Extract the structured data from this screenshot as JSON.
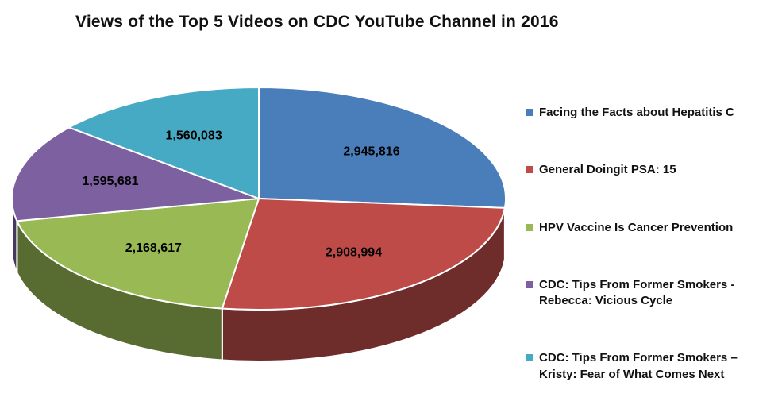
{
  "page": {
    "background": "#ffffff"
  },
  "chart_data": {
    "type": "pie",
    "style": "3d-pie",
    "title": "Views of the Top 5 Videos on CDC YouTube Channel in 2016",
    "legend_position": "right",
    "data_labels": "values-inside-slices",
    "start_angle_deg": 0,
    "direction": "clockwise",
    "slices": [
      {
        "label": "Facing the Facts about Hepatitis C",
        "value": 2945816,
        "value_label": "2,945,816",
        "color": "#4a7ebb"
      },
      {
        "label": "General Doingit PSA: 15",
        "value": 2908994,
        "value_label": "2,908,994",
        "color": "#be4b48"
      },
      {
        "label": "HPV Vaccine Is Cancer Prevention",
        "value": 2168617,
        "value_label": "2,168,617",
        "color": "#98b954"
      },
      {
        "label": "CDC: Tips From Former Smokers - Rebecca: Vicious Cycle",
        "value": 1595681,
        "value_label": "1,595,681",
        "color": "#7d60a0"
      },
      {
        "label": "CDC: Tips From Former Smokers – Kristy: Fear of What Comes Next",
        "value": 1560083,
        "value_label": "1,560,083",
        "color": "#46aac5"
      }
    ]
  }
}
